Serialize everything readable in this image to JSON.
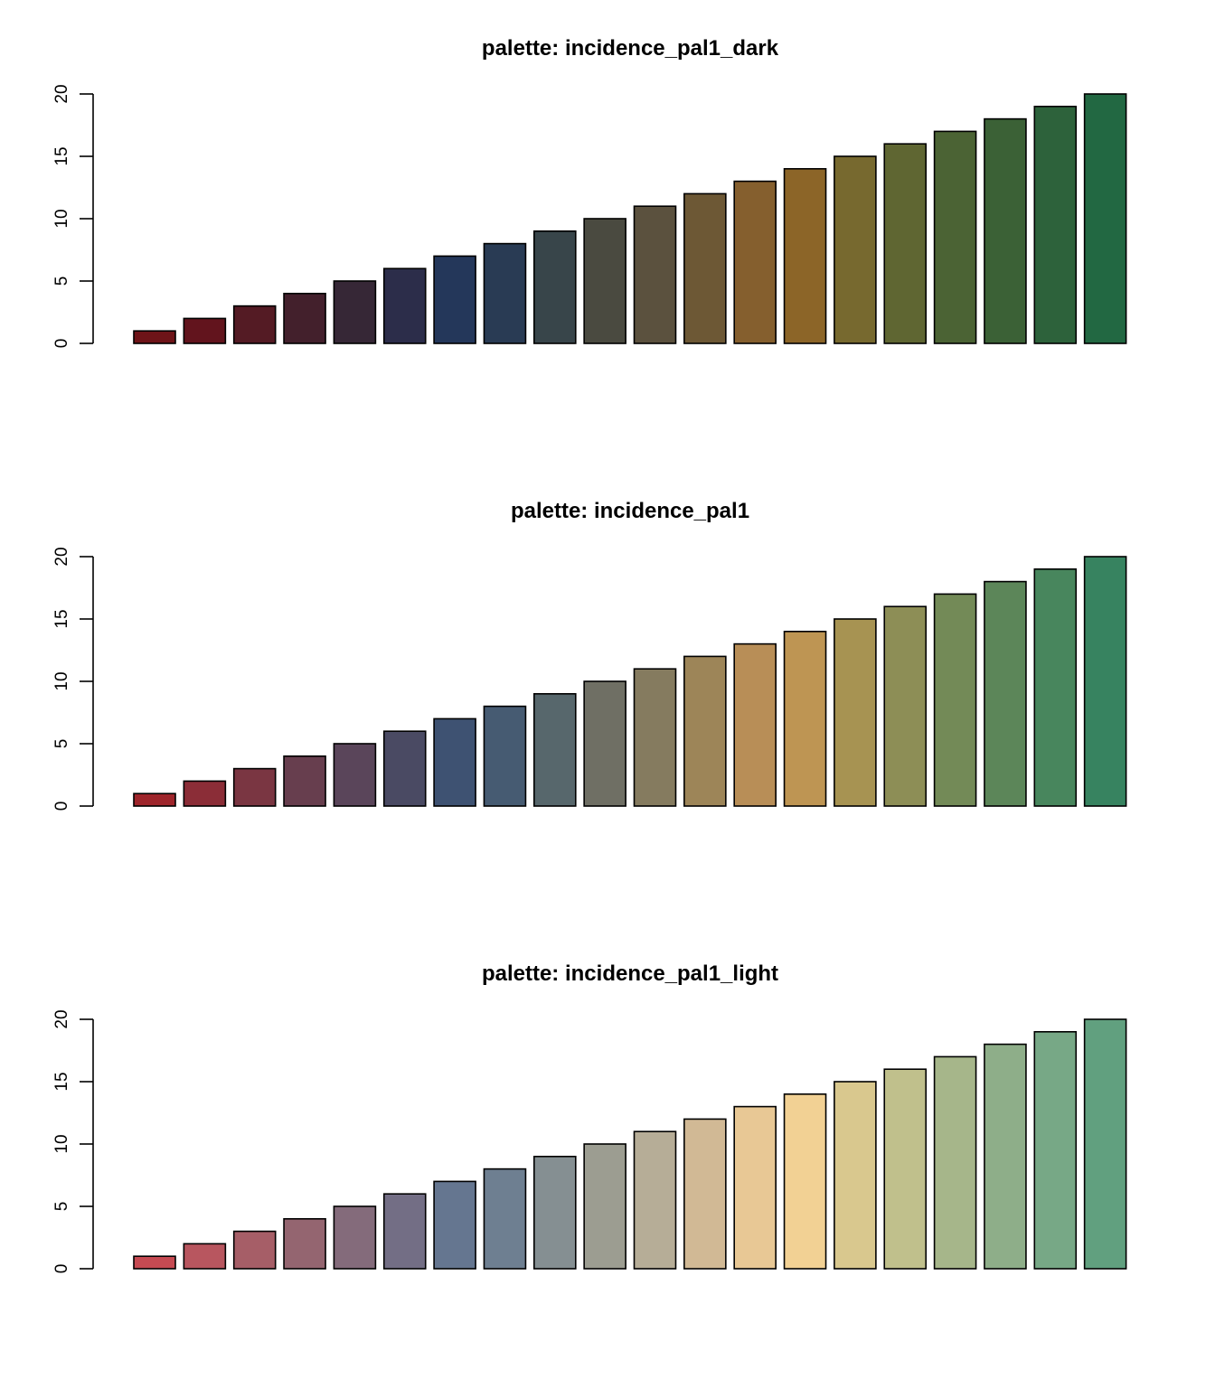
{
  "chart_data": [
    {
      "type": "bar",
      "title": "palette:  incidence_pal1_dark",
      "xlabel": "",
      "ylabel": "",
      "ylim": [
        0,
        20
      ],
      "yticks": [
        0,
        5,
        10,
        15,
        20
      ],
      "ytick_labels": [
        "0",
        "5",
        "10",
        "15",
        "20"
      ],
      "grid": false,
      "values": [
        1,
        2,
        3,
        4,
        5,
        6,
        7,
        8,
        9,
        10,
        11,
        12,
        13,
        14,
        15,
        16,
        17,
        18,
        19,
        20
      ],
      "colors": [
        "#6e1418",
        "#62141d",
        "#541b24",
        "#43202c",
        "#362736",
        "#2c2d4a",
        "#24375a",
        "#293b54",
        "#38454a",
        "#4a4a40",
        "#5b513e",
        "#6d5835",
        "#855f2e",
        "#8c6528",
        "#77692f",
        "#5f6632",
        "#4b6334",
        "#3b6136",
        "#2d623b",
        "#226842"
      ]
    },
    {
      "type": "bar",
      "title": "palette:  incidence_pal1",
      "xlabel": "",
      "ylabel": "",
      "ylim": [
        0,
        20
      ],
      "yticks": [
        0,
        5,
        10,
        15,
        20
      ],
      "ytick_labels": [
        "0",
        "5",
        "10",
        "15",
        "20"
      ],
      "grid": false,
      "values": [
        1,
        2,
        3,
        4,
        5,
        6,
        7,
        8,
        9,
        10,
        11,
        12,
        13,
        14,
        15,
        16,
        17,
        18,
        19,
        20
      ],
      "colors": [
        "#9e252b",
        "#8b2d37",
        "#7a3642",
        "#673e4e",
        "#5a455a",
        "#4a4a63",
        "#3e5272",
        "#465b72",
        "#57676c",
        "#6f6f64",
        "#857b5f",
        "#9d8558",
        "#b88e57",
        "#be9553",
        "#a79352",
        "#8d8e56",
        "#738a57",
        "#5c8659",
        "#48865d",
        "#378360"
      ]
    },
    {
      "type": "bar",
      "title": "palette:  incidence_pal1_light",
      "xlabel": "",
      "ylabel": "",
      "ylim": [
        0,
        20
      ],
      "yticks": [
        0,
        5,
        10,
        15,
        20
      ],
      "ytick_labels": [
        "0",
        "5",
        "10",
        "15",
        "20"
      ],
      "grid": false,
      "values": [
        1,
        2,
        3,
        4,
        5,
        6,
        7,
        8,
        9,
        10,
        11,
        12,
        13,
        14,
        15,
        16,
        17,
        18,
        19,
        20
      ],
      "colors": [
        "#c64a52",
        "#b8565f",
        "#a65e67",
        "#946570",
        "#846b7b",
        "#736e85",
        "#657690",
        "#6e7f91",
        "#858f92",
        "#9c9d91",
        "#b6ad97",
        "#d1b995",
        "#e8c895",
        "#f2d194",
        "#d9c88e",
        "#c0c08c",
        "#a6b68a",
        "#8eae89",
        "#77a886",
        "#61a07f"
      ]
    }
  ]
}
